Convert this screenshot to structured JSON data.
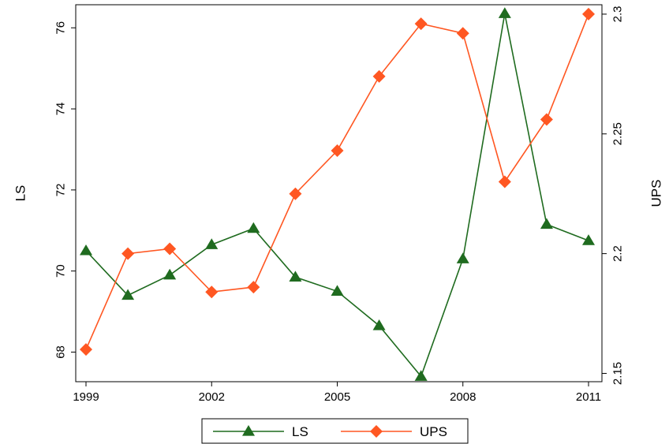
{
  "chart_data": {
    "type": "line",
    "x": [
      1999,
      2000,
      2001,
      2002,
      2003,
      2004,
      2005,
      2006,
      2007,
      2008,
      2009,
      2010,
      2011
    ],
    "xticks": [
      1999,
      2002,
      2005,
      2008,
      2011
    ],
    "xlim": [
      1999,
      2011
    ],
    "ylabel_left": "LS",
    "ylabel_right": "UPS",
    "ylim_left": [
      67.25,
      76.55
    ],
    "yticks_left": [
      68,
      70,
      72,
      74,
      76
    ],
    "ylim_right": [
      2.1462,
      2.3036
    ],
    "yticks_right": [
      "2.15",
      "2.2",
      "2.25",
      "2.3"
    ],
    "grid": false,
    "legend_position": "bottom-center",
    "series": [
      {
        "name": "LS",
        "axis": "left",
        "color": "#1f6b1f",
        "marker": "triangle",
        "values": [
          70.5,
          69.4,
          69.9,
          70.65,
          71.05,
          69.85,
          69.5,
          68.65,
          67.4,
          70.3,
          76.35,
          71.15,
          70.75
        ]
      },
      {
        "name": "UPS",
        "axis": "right",
        "color": "#ff5722",
        "marker": "diamond",
        "values": [
          2.16,
          2.2,
          2.202,
          2.184,
          2.186,
          2.225,
          2.243,
          2.274,
          2.296,
          2.292,
          2.23,
          2.256,
          2.3
        ]
      }
    ]
  }
}
